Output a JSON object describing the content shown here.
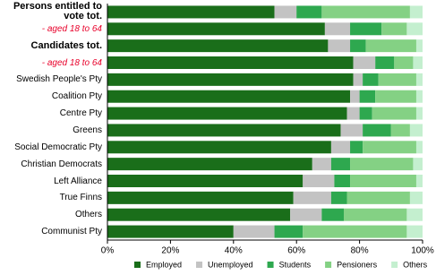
{
  "chart_data": {
    "type": "stacked-barh",
    "categories": [
      "Persons entitled to vote tot.",
      "- aged 18 to 64",
      "Candidates tot.",
      "- aged 18 to 64",
      "Swedish People's Pty",
      "Coalition Pty",
      "Centre Pty",
      "Greens",
      "Social Democratic Pty",
      "Christian Democrats",
      "Left Alliance",
      "True Finns",
      "Others",
      "Communist Pty"
    ],
    "series": [
      {
        "name": "Employed",
        "color": "#1a6e1a",
        "values": [
          53,
          69,
          70,
          78,
          78,
          77,
          76,
          74,
          71,
          65,
          62,
          59,
          58,
          40
        ]
      },
      {
        "name": "Unemployed",
        "color": "#c3c3c3",
        "values": [
          7,
          8,
          7,
          7,
          3,
          3,
          4,
          7,
          6,
          6,
          10,
          12,
          10,
          13
        ]
      },
      {
        "name": "Students",
        "color": "#2ea84f",
        "values": [
          8,
          10,
          5,
          6,
          5,
          5,
          4,
          9,
          4,
          6,
          5,
          5,
          7,
          9
        ]
      },
      {
        "name": "Pensioners",
        "color": "#84d184",
        "values": [
          28,
          8,
          16,
          6,
          12,
          13,
          14,
          6,
          17,
          20,
          21,
          20,
          20,
          33
        ]
      },
      {
        "name": "Others",
        "color": "#c4efcf",
        "values": [
          4,
          5,
          2,
          3,
          2,
          2,
          2,
          4,
          2,
          3,
          2,
          4,
          5,
          5
        ]
      }
    ],
    "xlim": [
      0,
      100
    ],
    "xticks": [
      {
        "value": 0,
        "label": "0%"
      },
      {
        "value": 20,
        "label": "20%"
      },
      {
        "value": 40,
        "label": "40%"
      },
      {
        "value": 60,
        "label": "60%"
      },
      {
        "value": 80,
        "label": "80%"
      },
      {
        "value": 100,
        "label": "100%"
      }
    ]
  }
}
